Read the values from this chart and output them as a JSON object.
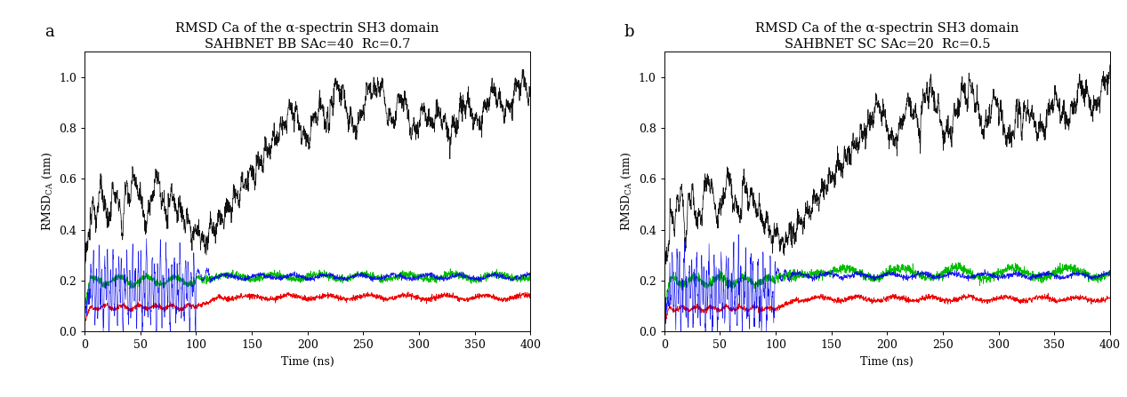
{
  "title_a": "RMSD Ca of the α-spectrin SH3 domain",
  "subtitle_a": "SAHBNET BB SAc=40  Rc=0.7",
  "title_b": "RMSD Ca of the α-spectrin SH3 domain",
  "subtitle_b": "SAHBNET SC SAc=20  Rc=0.5",
  "xlabel": "Time (ns)",
  "ylabel_line1": "RMSD",
  "ylabel_sub": "CA",
  "ylabel_line2": "(nm)",
  "panel_a_label": "a",
  "panel_b_label": "b",
  "xlim": [
    0,
    400
  ],
  "ylim": [
    0,
    1.1
  ],
  "yticks": [
    0,
    0.2,
    0.4,
    0.6,
    0.8,
    1.0
  ],
  "xticks": [
    0,
    50,
    100,
    150,
    200,
    250,
    300,
    350,
    400
  ],
  "black_color": "#111111",
  "green_color": "#00bb00",
  "blue_color": "#0000ee",
  "red_color": "#ee0000",
  "bg_color": "#ffffff",
  "title_fontsize": 10.5,
  "subtitle_fontsize": 9.5,
  "label_fontsize": 9,
  "tick_fontsize": 9,
  "panel_label_fontsize": 13
}
